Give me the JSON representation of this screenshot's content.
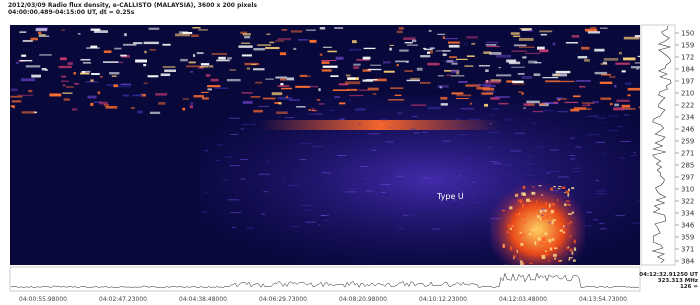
{
  "header": {
    "line1": "2012/03/09 Radio flux density, e-CALLISTO (MALAYSIA), 3600 x 200 pixels",
    "line2": "04:00:00.489-04:15:00 UT, dt = 0.25s"
  },
  "annotation": "Type U",
  "y_axis_labels": [
    150,
    159,
    172,
    184,
    197,
    210,
    222,
    234,
    246,
    259,
    271,
    285,
    297,
    310,
    322,
    334,
    346,
    359,
    371,
    384
  ],
  "x_axis_labels": [
    "04:00:55.98000",
    "04:02:47.23000",
    "04:04:38.48000",
    "04:06:29.73000",
    "04:08:20.98000",
    "04:10:12.23000",
    "04:12:03.48000",
    "04:13:54.73000"
  ],
  "readout": [
    "04:12:32.91250 UT",
    "323.313 MHz",
    "126 ="
  ]
}
